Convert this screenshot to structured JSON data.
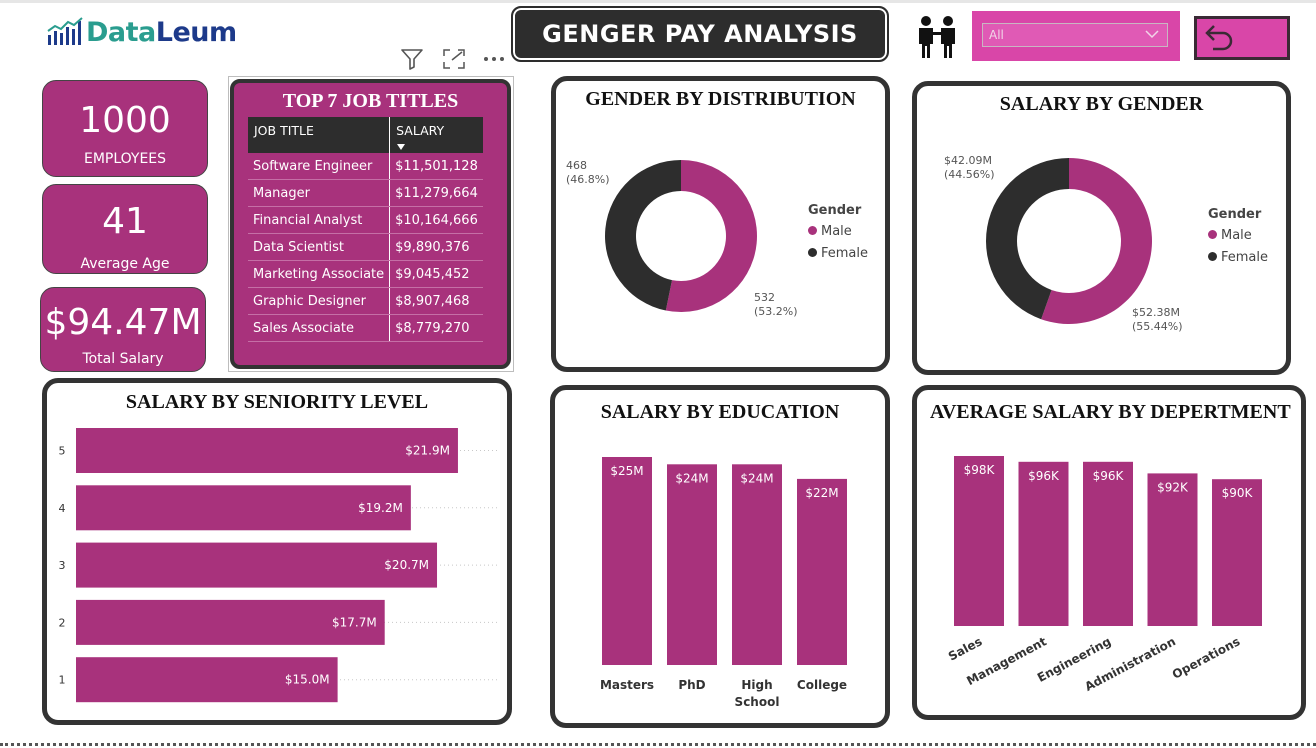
{
  "header": {
    "logo_part1": "Data",
    "logo_part2": "Leum",
    "title": "GENGER PAY ANALYSIS",
    "filter_value": "All"
  },
  "kpis": [
    {
      "value": "1000",
      "label": "EMPLOYEES"
    },
    {
      "value": "41",
      "label": "Average Age"
    },
    {
      "value": "$94.47M",
      "label": "Total Salary"
    }
  ],
  "job_table": {
    "title": "TOP 7 JOB TITLES",
    "columns": [
      "JOB TITLE",
      "SALARY"
    ],
    "rows": [
      [
        "Software Engineer",
        "$11,501,128"
      ],
      [
        "Manager",
        "$11,279,664"
      ],
      [
        "Financial Analyst",
        "$10,164,666"
      ],
      [
        "Data Scientist",
        "$9,890,376"
      ],
      [
        "Marketing Associate",
        "$9,045,452"
      ],
      [
        "Graphic Designer",
        "$8,907,468"
      ],
      [
        "Sales Associate",
        "$8,779,270"
      ]
    ]
  },
  "colors": {
    "accent": "#a8327c",
    "dark": "#2d2d2d",
    "filter": "#d946a8"
  },
  "icons": [
    "filter-icon",
    "focus-mode-icon",
    "more-options-icon",
    "people-icon",
    "chevron-down-icon",
    "undo-arrow-icon"
  ],
  "chart_data": [
    {
      "type": "pie",
      "title": "GENDER BY DISTRIBUTION",
      "legend_title": "Gender",
      "categories": [
        "Male",
        "Female"
      ],
      "values": [
        532,
        468
      ],
      "labels": [
        [
          "532",
          "(53.2%)"
        ],
        [
          "468",
          "(46.8%)"
        ]
      ]
    },
    {
      "type": "pie",
      "title": "SALARY BY GENDER",
      "legend_title": "Gender",
      "categories": [
        "Male",
        "Female"
      ],
      "values": [
        52.38,
        42.09
      ],
      "labels": [
        [
          "$52.38M",
          "(55.44%)"
        ],
        [
          "$42.09M",
          "(44.56%)"
        ]
      ]
    },
    {
      "type": "bar",
      "orientation": "horizontal",
      "title": "SALARY BY SENIORITY LEVEL",
      "categories": [
        "5",
        "4",
        "3",
        "2",
        "1"
      ],
      "values": [
        21.9,
        19.2,
        20.7,
        17.7,
        15.0
      ],
      "data_labels": [
        "$21.9M",
        "$19.2M",
        "$20.7M",
        "$17.7M",
        "$15.0M"
      ],
      "xlim": [
        0,
        25
      ]
    },
    {
      "type": "bar",
      "title": "SALARY BY EDUCATION",
      "categories": [
        "Masters",
        "PhD",
        "High School",
        "College"
      ],
      "values": [
        25,
        24,
        24,
        22
      ],
      "data_labels": [
        "$25M",
        "$24M",
        "$24M",
        "$22M"
      ]
    },
    {
      "type": "bar",
      "title": "AVERAGE SALARY BY DEPERTMENT",
      "categories": [
        "Sales",
        "Management",
        "Engineering",
        "Administration",
        "Operations"
      ],
      "values": [
        98,
        96,
        96,
        92,
        90
      ],
      "data_labels": [
        "$98K",
        "$96K",
        "$96K",
        "$92K",
        "$90K"
      ]
    }
  ]
}
